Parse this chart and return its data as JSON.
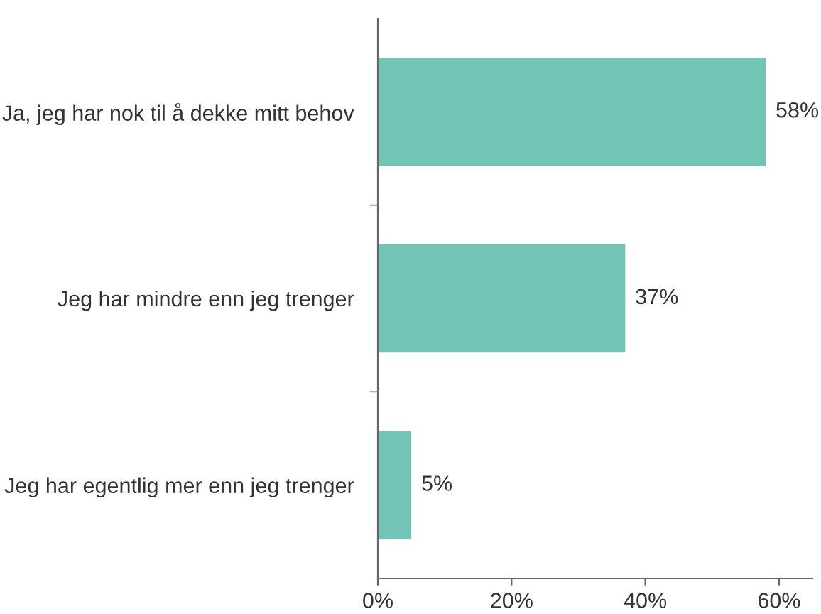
{
  "chart_data": {
    "type": "bar",
    "orientation": "horizontal",
    "categories": [
      "Ja, jeg har nok til å dekke mitt behov",
      "Jeg har mindre enn jeg trenger",
      "Jeg har egentlig mer enn jeg trenger"
    ],
    "values": [
      58,
      37,
      5
    ],
    "value_labels": [
      "58%",
      "37%",
      "5%"
    ],
    "color": "#72c4b4",
    "xlim": [
      0,
      65
    ],
    "xticks": [
      {
        "value": 0,
        "label": "0%"
      },
      {
        "value": 20,
        "label": "20%"
      },
      {
        "value": 40,
        "label": "40%"
      },
      {
        "value": 60,
        "label": "60%"
      }
    ],
    "grid": false
  }
}
